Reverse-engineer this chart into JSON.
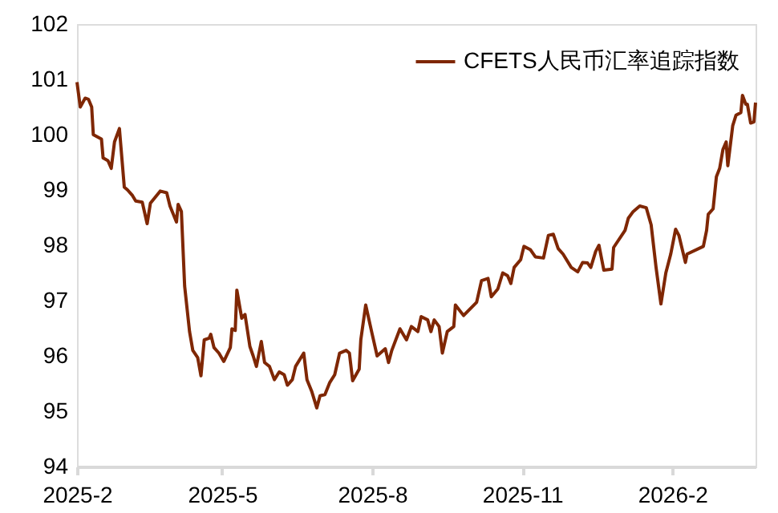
{
  "chart_data": {
    "type": "line",
    "legend": "top right",
    "grid": false,
    "marker": "none",
    "line_style": "solid",
    "xlim": [
      "2025-02-01",
      "2026-03-24"
    ],
    "xticks": [
      {
        "value": "2025-02-01",
        "label": "2025-2"
      },
      {
        "value": "2025-05-01",
        "label": "2025-5"
      },
      {
        "value": "2025-08-01",
        "label": "2025-8"
      },
      {
        "value": "2025-11-01",
        "label": "2025-11"
      },
      {
        "value": "2026-02-01",
        "label": "2026-2"
      }
    ],
    "ylim": [
      94,
      102
    ],
    "yticks": [
      94,
      95,
      96,
      97,
      98,
      99,
      100,
      101,
      102
    ],
    "x": [
      "2025-02-01",
      "2025-02-03",
      "2025-02-06",
      "2025-02-08",
      "2025-02-10",
      "2025-02-11",
      "2025-02-16",
      "2025-02-17",
      "2025-02-20",
      "2025-02-22",
      "2025-02-24",
      "2025-02-27",
      "2025-03-02",
      "2025-03-04",
      "2025-03-07",
      "2025-03-09",
      "2025-03-13",
      "2025-03-16",
      "2025-03-18",
      "2025-03-21",
      "2025-03-24",
      "2025-03-28",
      "2025-03-30",
      "2025-04-03",
      "2025-04-04",
      "2025-04-06",
      "2025-04-08",
      "2025-04-11",
      "2025-04-13",
      "2025-04-16",
      "2025-04-18",
      "2025-04-20",
      "2025-04-23",
      "2025-04-24",
      "2025-04-26",
      "2025-04-29",
      "2025-05-02",
      "2025-05-06",
      "2025-05-07",
      "2025-05-09",
      "2025-05-10",
      "2025-05-13",
      "2025-05-15",
      "2025-05-18",
      "2025-05-20",
      "2025-05-22",
      "2025-05-25",
      "2025-05-27",
      "2025-05-30",
      "2025-06-02",
      "2025-06-05",
      "2025-06-08",
      "2025-06-10",
      "2025-06-13",
      "2025-06-15",
      "2025-06-20",
      "2025-06-22",
      "2025-06-25",
      "2025-06-28",
      "2025-06-30",
      "2025-07-03",
      "2025-07-06",
      "2025-07-09",
      "2025-07-12",
      "2025-07-16",
      "2025-07-18",
      "2025-07-20",
      "2025-07-24",
      "2025-07-25",
      "2025-07-28",
      "2025-08-01",
      "2025-08-04",
      "2025-08-09",
      "2025-08-11",
      "2025-08-13",
      "2025-08-18",
      "2025-08-22",
      "2025-08-25",
      "2025-08-29",
      "2025-08-31",
      "2025-09-04",
      "2025-09-06",
      "2025-09-08",
      "2025-09-11",
      "2025-09-13",
      "2025-09-16",
      "2025-09-20",
      "2025-09-21",
      "2025-09-26",
      "2025-10-04",
      "2025-10-07",
      "2025-10-11",
      "2025-10-13",
      "2025-10-17",
      "2025-10-20",
      "2025-10-23",
      "2025-10-25",
      "2025-10-27",
      "2025-10-31",
      "2025-11-02",
      "2025-11-06",
      "2025-11-09",
      "2025-11-14",
      "2025-11-17",
      "2025-11-20",
      "2025-11-23",
      "2025-11-26",
      "2025-12-01",
      "2025-12-05",
      "2025-12-08",
      "2025-12-11",
      "2025-12-13",
      "2025-12-16",
      "2025-12-18",
      "2025-12-21",
      "2025-12-26",
      "2025-12-27",
      "2026-01-03",
      "2026-01-05",
      "2026-01-08",
      "2026-01-12",
      "2026-01-16",
      "2026-01-19",
      "2026-01-22",
      "2026-01-25",
      "2026-01-28",
      "2026-01-31",
      "2026-02-03",
      "2026-02-05",
      "2026-02-09",
      "2026-02-10",
      "2026-02-20",
      "2026-02-22",
      "2026-02-23",
      "2026-02-26",
      "2026-02-28",
      "2026-03-02",
      "2026-03-04",
      "2026-03-06",
      "2026-03-07",
      "2026-03-10",
      "2026-03-12",
      "2026-03-15",
      "2026-03-16",
      "2026-03-18",
      "2026-03-19",
      "2026-03-21",
      "2026-03-23",
      "2026-03-24"
    ],
    "series": [
      {
        "name": "CFETS人民币汇率追踪指数",
        "color": "#7f2704",
        "values": [
          100.95,
          100.5,
          100.66,
          100.64,
          100.5,
          100.0,
          99.92,
          99.58,
          99.53,
          99.39,
          99.87,
          100.11,
          99.05,
          99.0,
          98.9,
          98.8,
          98.78,
          98.39,
          98.76,
          98.87,
          98.98,
          98.95,
          98.71,
          98.42,
          98.74,
          98.61,
          97.26,
          96.44,
          96.1,
          95.97,
          95.64,
          96.29,
          96.32,
          96.39,
          96.15,
          96.05,
          95.9,
          96.15,
          96.49,
          96.46,
          97.19,
          96.68,
          96.75,
          96.17,
          96.0,
          95.81,
          96.26,
          95.88,
          95.81,
          95.57,
          95.71,
          95.66,
          95.47,
          95.57,
          95.81,
          96.05,
          95.57,
          95.35,
          95.06,
          95.28,
          95.3,
          95.52,
          95.66,
          96.05,
          96.1,
          96.05,
          95.55,
          95.76,
          96.29,
          96.92,
          96.39,
          96.0,
          96.13,
          95.88,
          96.1,
          96.49,
          96.29,
          96.53,
          96.44,
          96.71,
          96.65,
          96.44,
          96.65,
          96.53,
          96.05,
          96.44,
          96.53,
          96.92,
          96.73,
          96.97,
          97.36,
          97.4,
          97.07,
          97.21,
          97.5,
          97.45,
          97.31,
          97.6,
          97.74,
          97.98,
          97.92,
          97.79,
          97.77,
          98.18,
          98.2,
          97.94,
          97.84,
          97.6,
          97.52,
          97.69,
          97.68,
          97.6,
          97.89,
          98.0,
          97.55,
          97.57,
          97.96,
          98.27,
          98.49,
          98.61,
          98.71,
          98.68,
          98.37,
          97.6,
          96.94,
          97.5,
          97.84,
          98.29,
          98.18,
          97.69,
          97.84,
          97.98,
          98.27,
          98.56,
          98.66,
          99.24,
          99.39,
          99.73,
          99.87,
          99.44,
          100.16,
          100.35,
          100.4,
          100.71,
          100.55,
          100.55,
          100.21,
          100.23,
          100.58
        ]
      }
    ]
  }
}
